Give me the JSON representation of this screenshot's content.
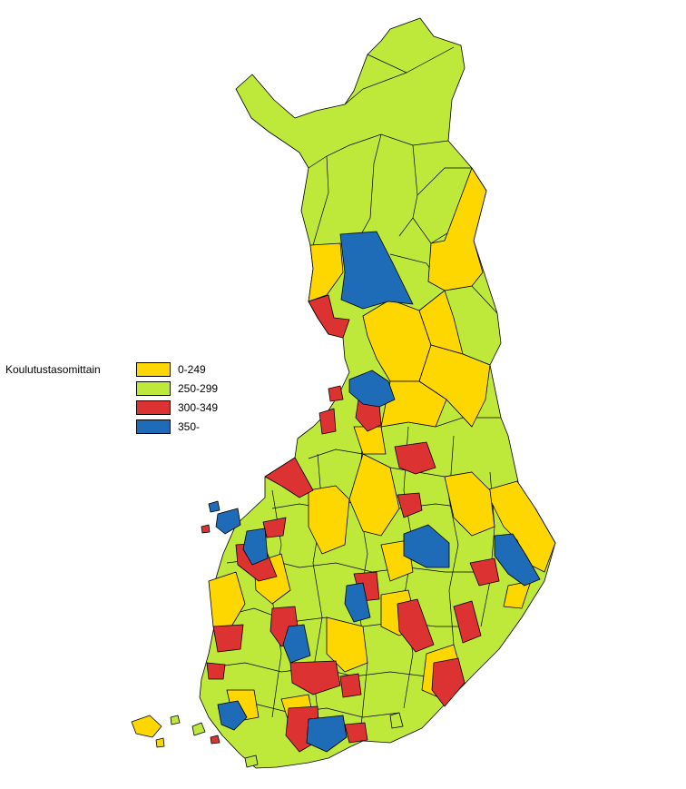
{
  "legend": {
    "title": "Koulutustasomittain",
    "items": [
      {
        "label": "0-249",
        "color": "#FFD700"
      },
      {
        "label": "250-299",
        "color": "#BEE83A"
      },
      {
        "label": "300-349",
        "color": "#DC3232"
      },
      {
        "label": "350-",
        "color": "#1E6BB8"
      }
    ]
  },
  "colors": {
    "yellow": "#FFD700",
    "green": "#BEE83A",
    "red": "#DC3232",
    "blue": "#1E6BB8",
    "border": "#000000"
  }
}
